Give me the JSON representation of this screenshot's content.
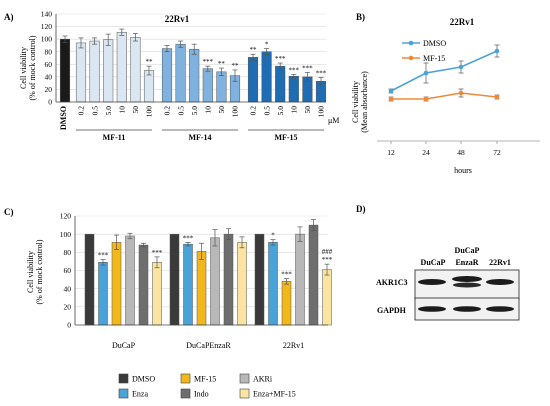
{
  "panel_a": {
    "letter": "A)",
    "title": "22Rv1",
    "ylabel_line1": "Cell viability",
    "ylabel_line2": "(% of mock control)",
    "ytick_labels": [
      "0",
      "20",
      "40",
      "60",
      "80",
      "100",
      "120",
      "140"
    ],
    "unit": "μM",
    "concentration_labels": [
      "0.2",
      "0.5",
      "5.0",
      "10",
      "50",
      "100"
    ],
    "control_label": "DMSO",
    "group_labels": [
      "MF-11",
      "MF-14",
      "MF-15"
    ]
  },
  "panel_b": {
    "letter": "B)",
    "title": "22Rv1",
    "ylabel_line1": "Cell viability",
    "ylabel_line2": "(Mean absorbance)",
    "xlabel": "hours",
    "xtick_labels": [
      "12",
      "24",
      "48",
      "72"
    ],
    "legend": [
      "DMSO",
      "MF-15"
    ]
  },
  "panel_c": {
    "letter": "C)",
    "ylabel_line1": "Cell viability",
    "ylabel_line2": "(% of mock control)",
    "ytick_labels": [
      "0",
      "20",
      "40",
      "60",
      "80",
      "100",
      "120"
    ],
    "group_labels": [
      "DuCaP",
      "DuCaPEnzaR",
      "22Rv1"
    ],
    "legend": [
      "DMSO",
      "MF-15",
      "AKRi",
      "Enza",
      "Indo",
      "Enza+MF-15"
    ]
  },
  "panel_d": {
    "letter": "D)",
    "lane_labels": [
      "DuCaP",
      "DuCaP\nEnzaR",
      "22Rv1"
    ],
    "lane_label_ducap": "DuCaP",
    "lane_label_enzar_top": "DuCaP",
    "lane_label_enzar_bottom": "EnzaR",
    "lane_label_22rv1": "22Rv1",
    "blot_labels": [
      "AKR1C3",
      "GAPDH"
    ]
  },
  "chart_data": [
    {
      "panel": "A",
      "type": "bar",
      "ylim": [
        0,
        140
      ],
      "grid": true,
      "categories": [
        "DMSO",
        "MF-11 0.2",
        "MF-11 0.5",
        "MF-11 5.0",
        "MF-11 10",
        "MF-11 50",
        "MF-11 100",
        "MF-14 0.2",
        "MF-14 0.5",
        "MF-14 5.0",
        "MF-14 10",
        "MF-14 50",
        "MF-14 100",
        "MF-15 0.2",
        "MF-15 0.5",
        "MF-15 5.0",
        "MF-15 10",
        "MF-15 50",
        "MF-15 100"
      ],
      "values": [
        100,
        94,
        97,
        99,
        111,
        103,
        50,
        85,
        92,
        84,
        53,
        48,
        42,
        71,
        80,
        57,
        41,
        40,
        33
      ],
      "errors": [
        5,
        8,
        5,
        9,
        5,
        6,
        7,
        5,
        5,
        8,
        4,
        6,
        9,
        5,
        5,
        5,
        3,
        7,
        6
      ],
      "significance": [
        "",
        "",
        "",
        "",
        "",
        "",
        "**",
        "",
        "",
        "",
        "***",
        "**",
        "**",
        "**",
        "*",
        "***",
        "***",
        "***",
        "***"
      ],
      "colors": [
        "#1a1a1a",
        "#dbe6f3",
        "#dbe6f3",
        "#dbe6f3",
        "#dbe6f3",
        "#dbe6f3",
        "#dbe6f3",
        "#7fb2de",
        "#7fb2de",
        "#7fb2de",
        "#7fb2de",
        "#7fb2de",
        "#7fb2de",
        "#1f6cb2",
        "#1f6cb2",
        "#1f6cb2",
        "#1f6cb2",
        "#1f6cb2",
        "#1f6cb2"
      ]
    },
    {
      "panel": "B",
      "type": "line",
      "x": [
        12,
        24,
        48,
        72
      ],
      "ylim": [
        0,
        0.6
      ],
      "grid": false,
      "legend_position": "top-left",
      "series": [
        {
          "name": "DMSO",
          "values": [
            0.25,
            0.34,
            0.37,
            0.45
          ],
          "errors": [
            0.01,
            0.05,
            0.03,
            0.03
          ],
          "color": "#4aa3d8"
        },
        {
          "name": "MF-15",
          "values": [
            0.21,
            0.21,
            0.24,
            0.22
          ],
          "errors": [
            0.01,
            0.01,
            0.02,
            0.01
          ],
          "color": "#f0883a"
        }
      ]
    },
    {
      "panel": "C",
      "type": "bar",
      "ylim": [
        0,
        120
      ],
      "grid": true,
      "legend_position": "bottom",
      "categories": [
        "DuCaP",
        "DuCaPEnzaR",
        "22Rv1"
      ],
      "series": [
        {
          "name": "DMSO",
          "values": [
            100,
            100,
            100
          ],
          "errors": [
            0,
            0,
            0
          ],
          "color": "#3a3a3a",
          "significance": [
            "",
            "",
            ""
          ]
        },
        {
          "name": "Enza",
          "values": [
            69,
            89,
            91
          ],
          "errors": [
            3,
            2,
            3
          ],
          "color": "#4aa3d8",
          "significance": [
            "***",
            "***",
            "*"
          ]
        },
        {
          "name": "MF-15",
          "values": [
            91,
            81,
            48
          ],
          "errors": [
            8,
            9,
            3
          ],
          "color": "#f2b81a",
          "significance": [
            "",
            "",
            "***"
          ]
        },
        {
          "name": "AKRi",
          "values": [
            98,
            96,
            100
          ],
          "errors": [
            3,
            9,
            8
          ],
          "color": "#b8b8b8",
          "significance": [
            "",
            "",
            ""
          ]
        },
        {
          "name": "Indo",
          "values": [
            88,
            100,
            110
          ],
          "errors": [
            2,
            6,
            6
          ],
          "color": "#6e6e6e",
          "significance": [
            "",
            "",
            ""
          ]
        },
        {
          "name": "Enza+MF-15",
          "values": [
            69,
            91,
            61
          ],
          "errors": [
            6,
            6,
            6
          ],
          "color": "#fbe3a0",
          "significance": [
            "***",
            "",
            "###\n***"
          ]
        }
      ]
    }
  ]
}
